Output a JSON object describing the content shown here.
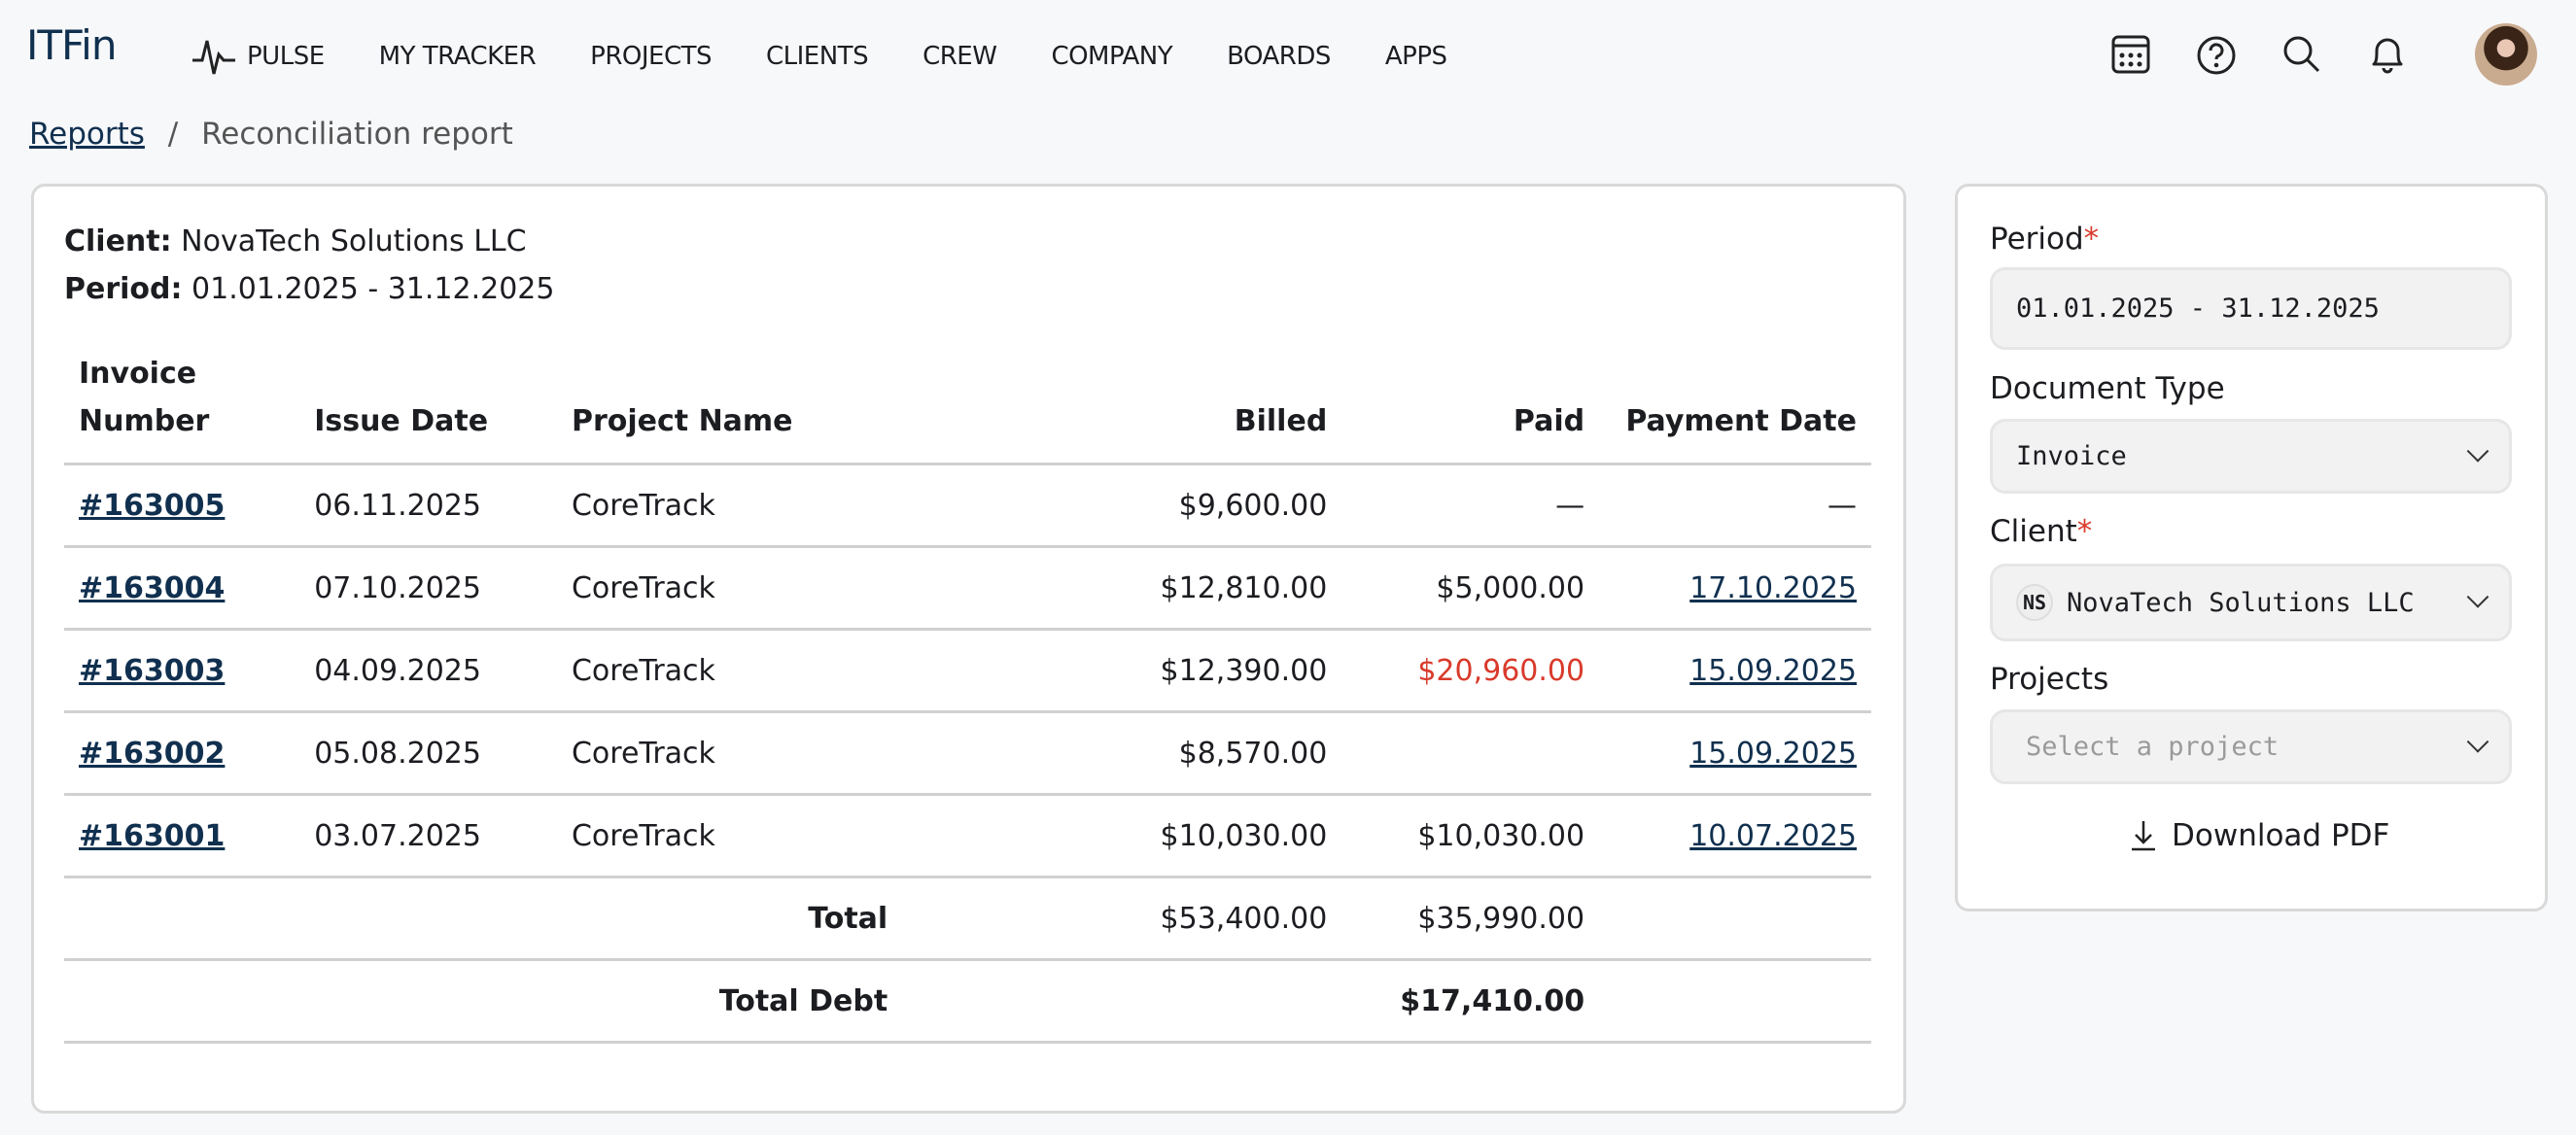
{
  "app": {
    "logo": "ITFin"
  },
  "nav": {
    "items": [
      "PULSE",
      "MY TRACKER",
      "PROJECTS",
      "CLIENTS",
      "CREW",
      "COMPANY",
      "BOARDS",
      "APPS"
    ]
  },
  "header_icons": [
    "calendar-icon",
    "help-icon",
    "search-icon",
    "bell-icon",
    "avatar"
  ],
  "breadcrumb": {
    "parent": "Reports",
    "separator": "/",
    "current": "Reconciliation report"
  },
  "report": {
    "client_label": "Client:",
    "client": "NovaTech Solutions LLC",
    "period_label": "Period:",
    "period": "01.01.2025 - 31.12.2025",
    "columns": [
      "Invoice Number",
      "Issue Date",
      "Project Name",
      "Billed",
      "Paid",
      "Payment Date"
    ],
    "rows": [
      {
        "invoice": "#163005",
        "issue_date": "06.11.2025",
        "project": "CoreTrack",
        "billed": "$9,600.00",
        "paid": "—",
        "payment_date": "—"
      },
      {
        "invoice": "#163004",
        "issue_date": "07.10.2025",
        "project": "CoreTrack",
        "billed": "$12,810.00",
        "paid": "$5,000.00",
        "payment_date": "17.10.2025"
      },
      {
        "invoice": "#163003",
        "issue_date": "04.09.2025",
        "project": "CoreTrack",
        "billed": "$12,390.00",
        "paid": "$20,960.00",
        "payment_date": "15.09.2025"
      },
      {
        "invoice": "#163002",
        "issue_date": "05.08.2025",
        "project": "CoreTrack",
        "billed": "$8,570.00",
        "paid": "",
        "payment_date": "15.09.2025"
      },
      {
        "invoice": "#163001",
        "issue_date": "03.07.2025",
        "project": "CoreTrack",
        "billed": "$10,030.00",
        "paid": "$10,030.00",
        "payment_date": "10.07.2025"
      }
    ],
    "total_label": "Total",
    "total_billed": "$53,400.00",
    "total_paid": "$35,990.00",
    "debt_label": "Total Debt",
    "total_debt": "$17,410.00",
    "overpaid_color": "#d93a2b"
  },
  "filters": {
    "period_label": "Period",
    "period_value": "01.01.2025 - 31.12.2025",
    "doctype_label": "Document Type",
    "doctype_value": "Invoice",
    "client_label": "Client",
    "client_initials": "NS",
    "client_value": "NovaTech Solutions LLC",
    "projects_label": "Projects",
    "projects_placeholder": "Select a project",
    "required_mark": "*",
    "download_label": "Download PDF"
  }
}
